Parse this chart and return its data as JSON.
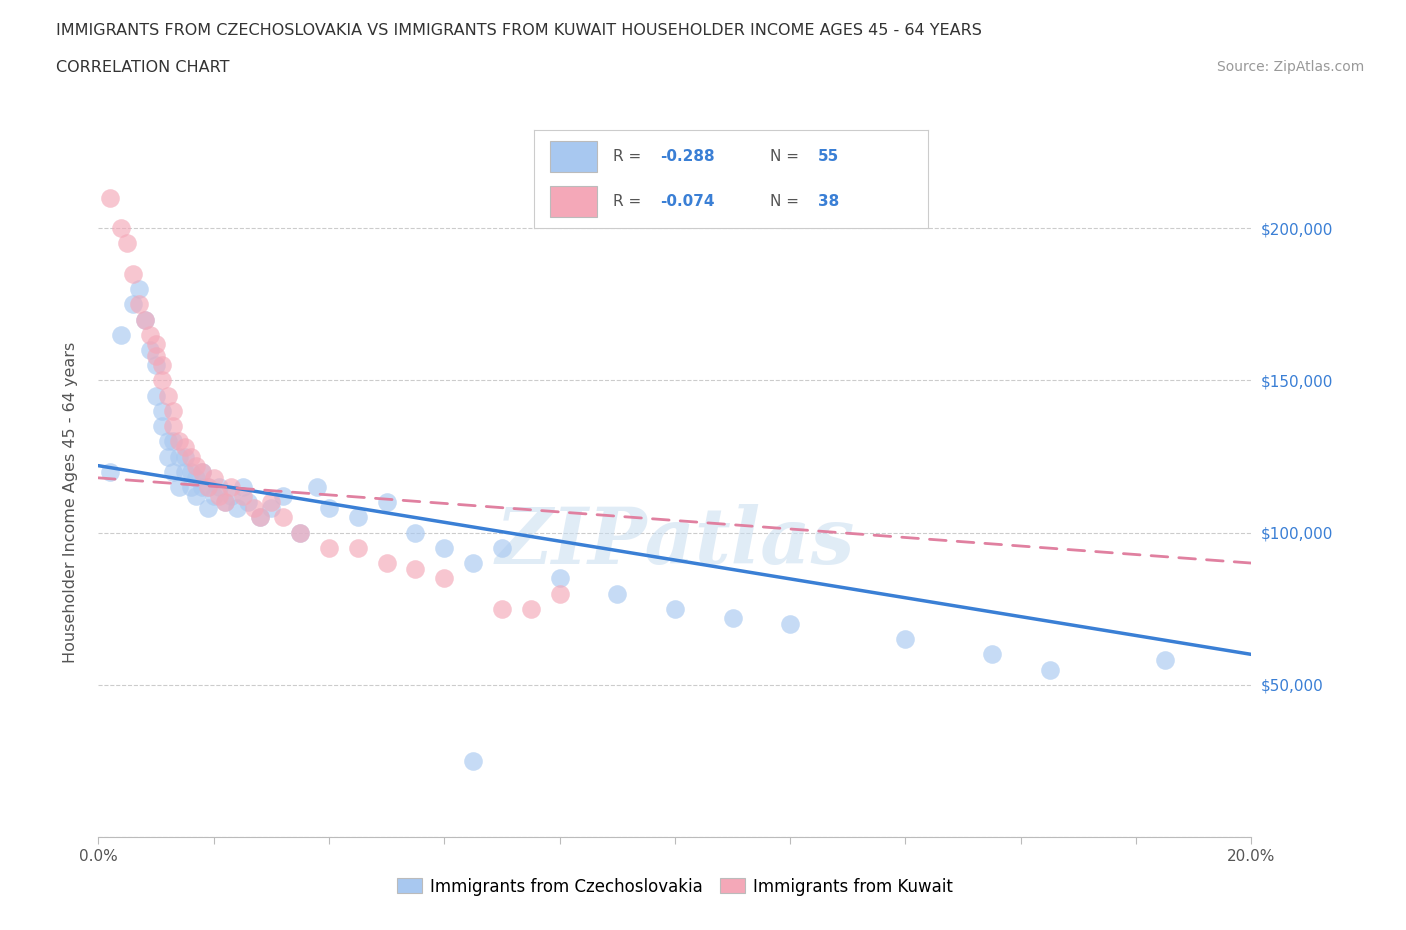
{
  "title_line1": "IMMIGRANTS FROM CZECHOSLOVAKIA VS IMMIGRANTS FROM KUWAIT HOUSEHOLDER INCOME AGES 45 - 64 YEARS",
  "title_line2": "CORRELATION CHART",
  "source_text": "Source: ZipAtlas.com",
  "ylabel": "Householder Income Ages 45 - 64 years",
  "watermark": "ZIPatlas",
  "color_czech": "#a8c8f0",
  "color_kuwait": "#f4a8b8",
  "color_czech_line": "#3a7fd5",
  "color_kuwait_line": "#e080a0",
  "x_min": 0.0,
  "x_max": 0.2,
  "y_min": 0,
  "y_max": 220000,
  "background_color": "#ffffff",
  "grid_color": "#cccccc",
  "czech_points_x": [
    0.002,
    0.004,
    0.006,
    0.007,
    0.008,
    0.009,
    0.01,
    0.01,
    0.011,
    0.011,
    0.012,
    0.012,
    0.013,
    0.013,
    0.014,
    0.014,
    0.015,
    0.015,
    0.016,
    0.016,
    0.017,
    0.017,
    0.018,
    0.018,
    0.019,
    0.019,
    0.02,
    0.021,
    0.022,
    0.023,
    0.024,
    0.025,
    0.026,
    0.028,
    0.03,
    0.032,
    0.035,
    0.038,
    0.04,
    0.045,
    0.05,
    0.055,
    0.06,
    0.065,
    0.07,
    0.08,
    0.09,
    0.1,
    0.11,
    0.12,
    0.14,
    0.155,
    0.165,
    0.185,
    0.065
  ],
  "czech_points_y": [
    120000,
    165000,
    175000,
    180000,
    170000,
    160000,
    155000,
    145000,
    140000,
    135000,
    130000,
    125000,
    130000,
    120000,
    125000,
    115000,
    120000,
    125000,
    115000,
    120000,
    118000,
    112000,
    115000,
    120000,
    115000,
    108000,
    112000,
    115000,
    110000,
    112000,
    108000,
    115000,
    110000,
    105000,
    108000,
    112000,
    100000,
    115000,
    108000,
    105000,
    110000,
    100000,
    95000,
    90000,
    95000,
    85000,
    80000,
    75000,
    72000,
    70000,
    65000,
    60000,
    55000,
    58000,
    25000
  ],
  "kuwait_points_x": [
    0.002,
    0.004,
    0.005,
    0.006,
    0.007,
    0.008,
    0.009,
    0.01,
    0.01,
    0.011,
    0.011,
    0.012,
    0.013,
    0.013,
    0.014,
    0.015,
    0.016,
    0.017,
    0.018,
    0.019,
    0.02,
    0.021,
    0.022,
    0.023,
    0.025,
    0.027,
    0.028,
    0.03,
    0.032,
    0.035,
    0.04,
    0.045,
    0.05,
    0.055,
    0.06,
    0.07,
    0.075,
    0.08
  ],
  "kuwait_points_y": [
    210000,
    200000,
    195000,
    185000,
    175000,
    170000,
    165000,
    162000,
    158000,
    155000,
    150000,
    145000,
    140000,
    135000,
    130000,
    128000,
    125000,
    122000,
    120000,
    115000,
    118000,
    112000,
    110000,
    115000,
    112000,
    108000,
    105000,
    110000,
    105000,
    100000,
    95000,
    95000,
    90000,
    88000,
    85000,
    75000,
    75000,
    80000
  ],
  "czech_trend_x": [
    0.0,
    0.2
  ],
  "czech_trend_y": [
    122000,
    60000
  ],
  "kuwait_trend_x": [
    0.0,
    0.2
  ],
  "kuwait_trend_y": [
    118000,
    90000
  ]
}
